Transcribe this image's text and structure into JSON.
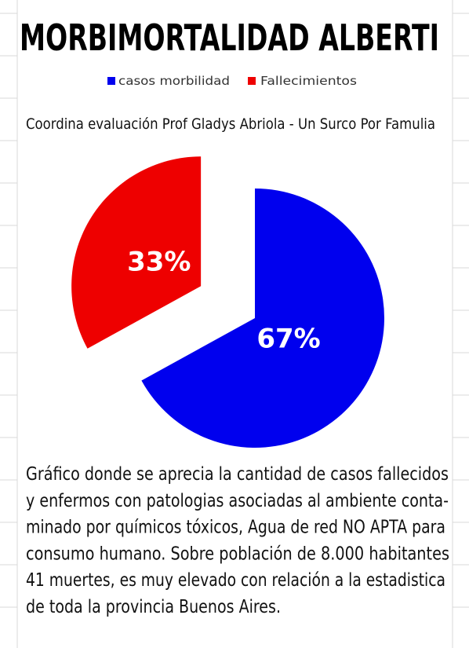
{
  "chart_data": {
    "type": "pie",
    "title": "MORBIMORTALIDAD ALBERTI",
    "subtitle": "Coordina evaluación Prof Gladys Abriola - Un Surco Por Famulia",
    "categories": [
      "casos morbilidad",
      "Fallecimientos"
    ],
    "values": [
      67,
      33
    ],
    "value_labels": [
      "67%",
      "33%"
    ],
    "colors": [
      "#0000ee",
      "#ee0000"
    ],
    "legend": "top",
    "caption_lines": [
      "Gráfico donde se aprecia la cantidad de casos fallecidos",
      "y enfermos con patologias  asociadas al ambiente conta-",
      "minado por químicos tóxicos, Agua de red NO APTA para",
      "consumo humano. Sobre población de 8.000 habitantes",
      "41 muertes, es muy elevado con relación a la estadistica",
      "de toda la  provincia Buenos Aires."
    ]
  }
}
